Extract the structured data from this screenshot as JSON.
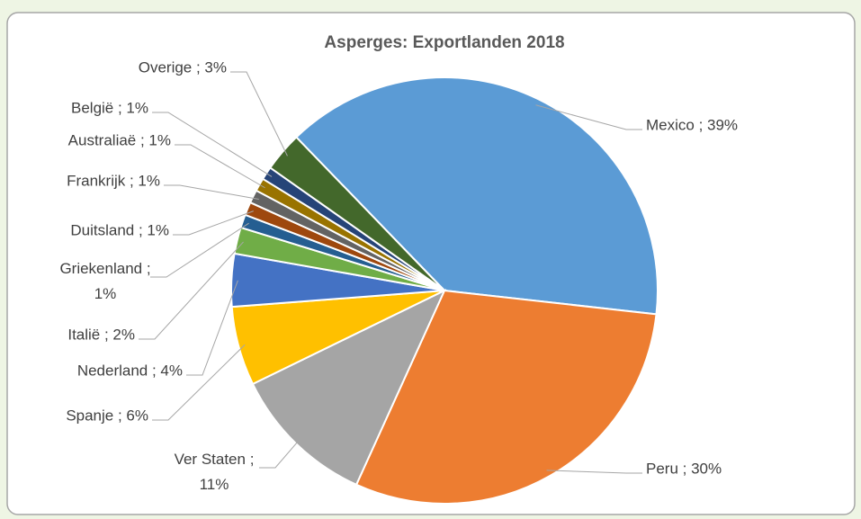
{
  "chart_data": {
    "type": "pie",
    "title": "Asperges: Exportlanden 2018",
    "values": [
      39,
      30,
      11,
      6,
      4,
      2,
      1,
      1,
      1,
      1,
      1,
      3
    ],
    "value_labels": [
      "Mexico ; 39%",
      "Peru ; 30%",
      "Ver Staten ; 11%",
      "Spanje ; 6%",
      "Nederland ; 4%",
      "Italië ; 2%",
      "Griekenland ; 1%",
      "Duitsland ; 1%",
      "Frankrijk ; 1%",
      "Australiaë ; 1%",
      "België ; 1%",
      "Overige ; 3%"
    ],
    "colors": [
      "#5b9bd5",
      "#ed7d31",
      "#a5a5a5",
      "#ffc000",
      "#4472c4",
      "#70ad47",
      "#255e91",
      "#9e480e",
      "#636363",
      "#997300",
      "#264478",
      "#43682b"
    ]
  }
}
